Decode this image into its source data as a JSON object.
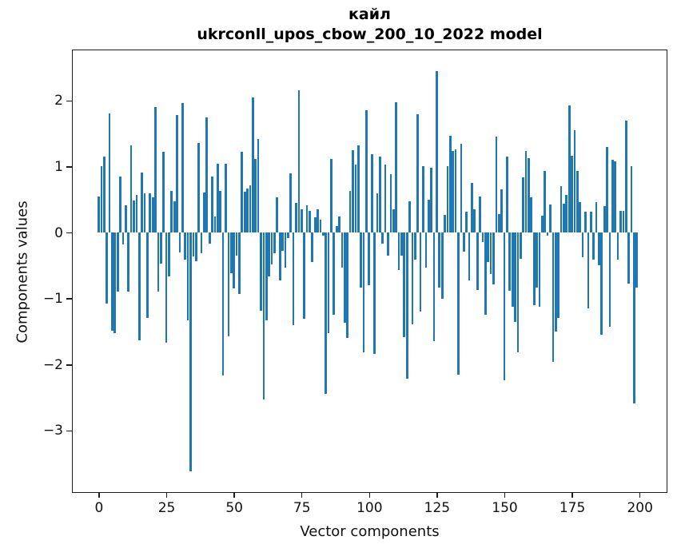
{
  "chart_data": {
    "type": "bar",
    "title_lines": [
      "кайл",
      "ukrconll_upos_cbow_200_10_2022 model"
    ],
    "xlabel": "Vector components",
    "ylabel": "Components values",
    "x_tick_values": [
      0,
      25,
      50,
      75,
      100,
      125,
      150,
      175,
      200
    ],
    "y_tick_values": [
      2,
      1,
      0,
      -1,
      -2,
      -3
    ],
    "xlim": [
      -9.6,
      209.7
    ],
    "ylim": [
      -3.92,
      2.76
    ],
    "grid": false,
    "legend": false,
    "bar_color": "#1f77b4",
    "n_components": 200,
    "values": [
      0.55,
      1.0,
      1.15,
      -1.08,
      1.8,
      -1.49,
      -1.52,
      -0.9,
      0.85,
      -0.18,
      0.41,
      -0.89,
      1.32,
      0.49,
      0.57,
      -1.63,
      0.91,
      0.59,
      -1.3,
      0.59,
      0.53,
      1.9,
      -0.9,
      -0.47,
      1.22,
      -1.67,
      -0.67,
      0.63,
      0.47,
      1.78,
      -0.3,
      1.96,
      -0.41,
      -1.33,
      -3.62,
      -0.36,
      -0.43,
      1.36,
      -0.31,
      0.6,
      1.74,
      -0.17,
      0.85,
      0.24,
      1.04,
      0.63,
      -2.17,
      1.04,
      -1.57,
      -0.62,
      -0.85,
      -0.35,
      -0.93,
      1.22,
      0.62,
      0.67,
      0.71,
      2.05,
      1.12,
      1.42,
      -1.19,
      -2.53,
      -1.33,
      -0.67,
      -0.48,
      -0.31,
      0.53,
      -0.73,
      -0.28,
      -0.53,
      -0.08,
      0.9,
      -1.4,
      0.45,
      2.15,
      0.35,
      -1.31,
      0.41,
      0.33,
      -0.45,
      0.23,
      0.35,
      0.19,
      -0.05,
      -2.44,
      -1.53,
      1.12,
      -1.25,
      0.1,
      0.24,
      -0.53,
      -1.37,
      -1.6,
      0.63,
      1.25,
      1.03,
      1.32,
      -0.83,
      -1.81,
      1.85,
      -0.8,
      1.19,
      -1.84,
      0.59,
      1.15,
      -0.17,
      1.03,
      -0.35,
      0.89,
      0.35,
      1.97,
      -0.57,
      -0.35,
      -1.59,
      -2.21,
      0.47,
      -1.39,
      -0.41,
      1.79,
      -1.2,
      1.0,
      -0.53,
      0.5,
      0.98,
      -1.65,
      2.45,
      -0.83,
      -1.0,
      0.27,
      1.0,
      1.47,
      1.24,
      1.26,
      -2.15,
      1.35,
      -0.29,
      0.31,
      -0.73,
      0.75,
      0.35,
      -0.87,
      0.54,
      -0.15,
      -1.24,
      -0.45,
      -0.63,
      -0.78,
      1.45,
      0.28,
      0.65,
      -2.24,
      1.15,
      -0.88,
      -1.12,
      -1.35,
      -1.82,
      -0.4,
      0.83,
      1.24,
      1.13,
      0.53,
      -1.1,
      -0.83,
      -1.12,
      0.25,
      0.93,
      -0.05,
      0.42,
      -1.96,
      -1.5,
      -1.3,
      0.7,
      0.44,
      0.57,
      1.93,
      1.16,
      1.55,
      0.93,
      0.46,
      -0.37,
      0.32,
      -1.15,
      0.32,
      -0.41,
      0.46,
      -0.49,
      -1.55,
      0.4,
      1.29,
      -1.43,
      1.1,
      1.08,
      -0.41,
      0.33,
      0.33,
      1.7,
      -0.77,
      1.01,
      -2.59,
      -0.83
    ]
  }
}
